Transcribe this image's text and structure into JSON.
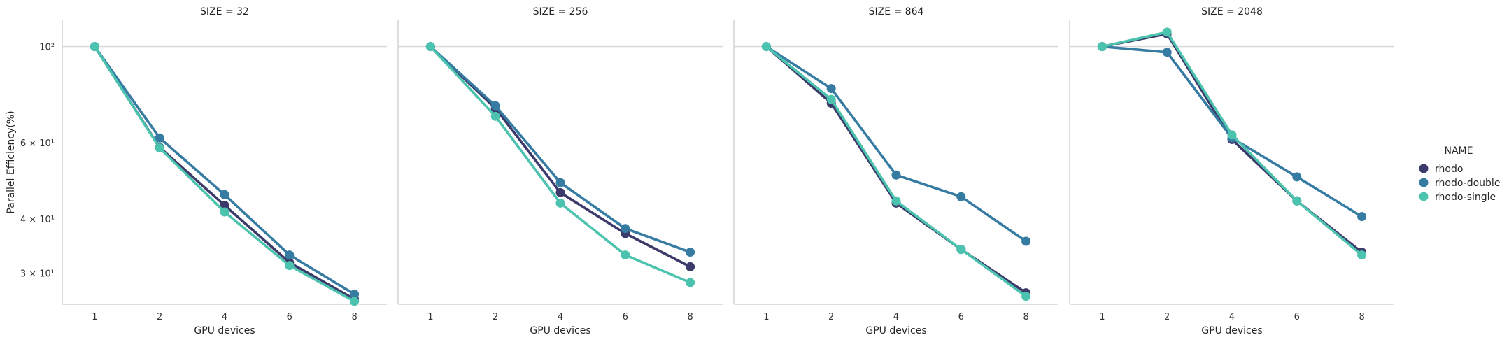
{
  "chart_data": {
    "type": "line",
    "facet_variable": "SIZE",
    "x_label": "GPU devices",
    "y_label": "Parallel Efficiency(%)",
    "y_scale": "log",
    "y_ticks": [
      {
        "value": 30,
        "label": "3 × 10¹"
      },
      {
        "value": 40,
        "label": "4 × 10¹"
      },
      {
        "value": 60,
        "label": "6 × 10¹"
      },
      {
        "value": 100,
        "label": "10²"
      }
    ],
    "y_range": [
      25.4,
      115
    ],
    "categories": [
      "1",
      "2",
      "4",
      "6",
      "8"
    ],
    "grid": "horizontal",
    "legend": {
      "title": "NAME",
      "position": "right",
      "entries": [
        {
          "name": "rhodo",
          "color": "#3b3a6b"
        },
        {
          "name": "rhodo-double",
          "color": "#357ba2"
        },
        {
          "name": "rhodo-single",
          "color": "#4cc3ae"
        }
      ]
    },
    "panels": [
      {
        "title": "SIZE = 32",
        "series": [
          {
            "name": "rhodo",
            "values": [
              100,
              58.5,
              43.0,
              31.7,
              26.1
            ]
          },
          {
            "name": "rhodo-double",
            "values": [
              100,
              61.5,
              45.5,
              33.0,
              26.8
            ]
          },
          {
            "name": "rhodo-single",
            "values": [
              100,
              58.3,
              41.5,
              31.2,
              25.8
            ]
          }
        ]
      },
      {
        "title": "SIZE = 256",
        "series": [
          {
            "name": "rhodo",
            "values": [
              100,
              72.0,
              46.0,
              37.0,
              31.0
            ]
          },
          {
            "name": "rhodo-double",
            "values": [
              100,
              73.0,
              48.5,
              38.0,
              33.5
            ]
          },
          {
            "name": "rhodo-single",
            "values": [
              100,
              69.0,
              43.5,
              33.0,
              28.5
            ]
          }
        ]
      },
      {
        "title": "SIZE = 864",
        "series": [
          {
            "name": "rhodo",
            "values": [
              100,
              74.0,
              43.5,
              34.0,
              27.0
            ]
          },
          {
            "name": "rhodo-double",
            "values": [
              100,
              80.0,
              50.5,
              45.0,
              35.5
            ]
          },
          {
            "name": "rhodo-single",
            "values": [
              100,
              75.5,
              44.0,
              34.0,
              26.5
            ]
          }
        ]
      },
      {
        "title": "SIZE = 2048",
        "series": [
          {
            "name": "rhodo",
            "values": [
              100,
              107.0,
              61.0,
              44.0,
              33.5
            ]
          },
          {
            "name": "rhodo-double",
            "values": [
              100,
              97.0,
              61.5,
              50.0,
              40.5
            ]
          },
          {
            "name": "rhodo-single",
            "values": [
              100,
              108.0,
              62.5,
              44.0,
              33.0
            ]
          }
        ]
      }
    ]
  }
}
